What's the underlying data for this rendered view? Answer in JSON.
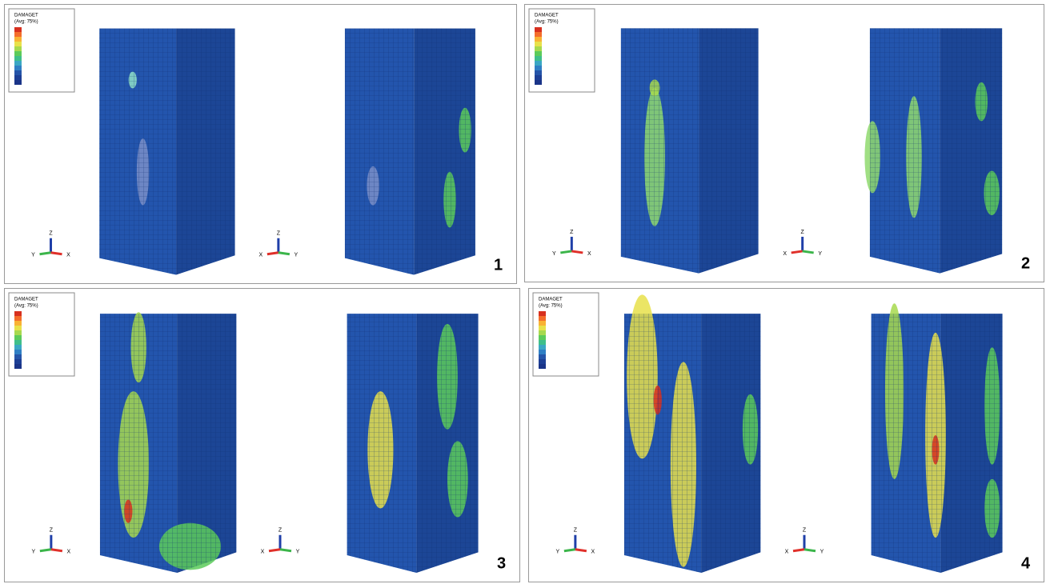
{
  "panels": [
    {
      "label": "1",
      "legend": {
        "title": "DAMAGET",
        "subtitle": "(Avg: 75%)"
      },
      "triads": [
        {
          "up": "Z",
          "left": "Y",
          "right": "X"
        },
        {
          "up": "Z",
          "left": "X",
          "right": "Y"
        }
      ]
    },
    {
      "label": "2",
      "legend": {
        "title": "DAMAGET",
        "subtitle": "(Avg: 75%)"
      },
      "triads": [
        {
          "up": "Z",
          "left": "Y",
          "right": "X"
        },
        {
          "up": "Z",
          "left": "X",
          "right": "Y"
        }
      ]
    },
    {
      "label": "3",
      "legend": {
        "title": "DAMAGET",
        "subtitle": "(Avg: 75%)"
      },
      "triads": [
        {
          "up": "Z",
          "left": "Y",
          "right": "X"
        },
        {
          "up": "Z",
          "left": "X",
          "right": "Y"
        }
      ]
    },
    {
      "label": "4",
      "legend": {
        "title": "DAMAGET",
        "subtitle": "(Avg: 75%)"
      },
      "triads": [
        {
          "up": "Z",
          "left": "Y",
          "right": "X"
        },
        {
          "up": "Z",
          "left": "X",
          "right": "Y"
        }
      ]
    }
  ]
}
